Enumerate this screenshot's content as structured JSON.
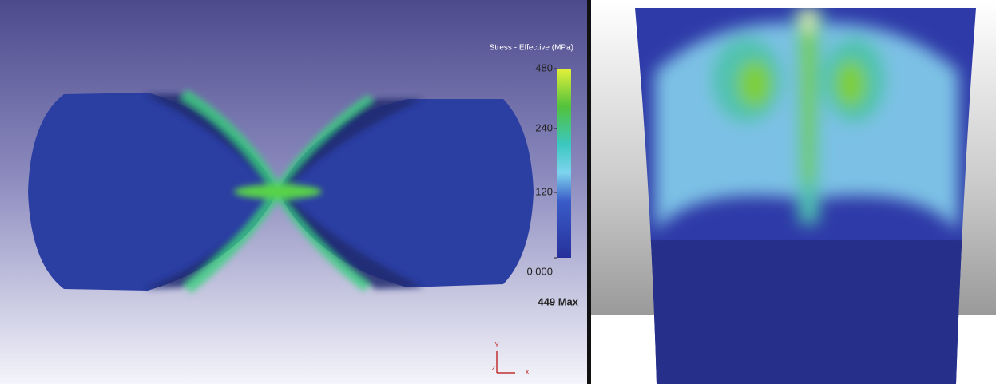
{
  "colorbar": {
    "title": "Stress - Effective (MPa)",
    "ticks": [
      480,
      240,
      120,
      {
        "value": 0,
        "label": "0.000"
      }
    ],
    "max_label": "449 Max"
  },
  "triad": {
    "y": "Y",
    "z": "Z",
    "x": "X"
  }
}
